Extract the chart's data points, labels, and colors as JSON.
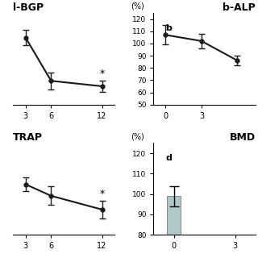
{
  "lbgp": {
    "title": "l-BGP",
    "x": [
      3,
      6,
      12
    ],
    "y": [
      107,
      67,
      62
    ],
    "yerr": [
      7,
      8,
      5
    ],
    "star_x": 12,
    "xlim": [
      1.5,
      13.5
    ],
    "ylim": [
      45,
      130
    ],
    "yticks": [],
    "xticks": [
      3,
      6,
      12
    ]
  },
  "balp": {
    "title": "b-ALP",
    "label": "b",
    "pct_label": "(%)",
    "x": [
      0,
      3,
      6
    ],
    "y": [
      107,
      102,
      86
    ],
    "yerr": [
      8,
      6,
      4
    ],
    "xlim": [
      -1,
      7.5
    ],
    "ylim": [
      50,
      125
    ],
    "yticks": [
      50,
      60,
      70,
      80,
      90,
      100,
      110,
      120
    ],
    "xticks": [
      0,
      3
    ]
  },
  "trap": {
    "title": "TRAP",
    "x": [
      3,
      6,
      12
    ],
    "y": [
      104,
      99,
      93
    ],
    "yerr": [
      3,
      4,
      4
    ],
    "star_x": 12,
    "xlim": [
      1.5,
      13.5
    ],
    "ylim": [
      82,
      122
    ],
    "yticks": [],
    "xticks": [
      3,
      6,
      12
    ]
  },
  "bmd": {
    "title": "BMD",
    "label": "d",
    "pct_label": "(%)",
    "bar_x": [
      0
    ],
    "bar_height": [
      99
    ],
    "bar_yerr": [
      5
    ],
    "bar_color": "#b0c8c8",
    "xlim": [
      -1,
      4
    ],
    "ylim": [
      80,
      125
    ],
    "yticks": [
      80,
      90,
      100,
      110,
      120
    ],
    "xticks": [
      0,
      3
    ]
  },
  "bg_color": "#ffffff",
  "line_color": "#1a1a1a",
  "font_color": "#000000"
}
